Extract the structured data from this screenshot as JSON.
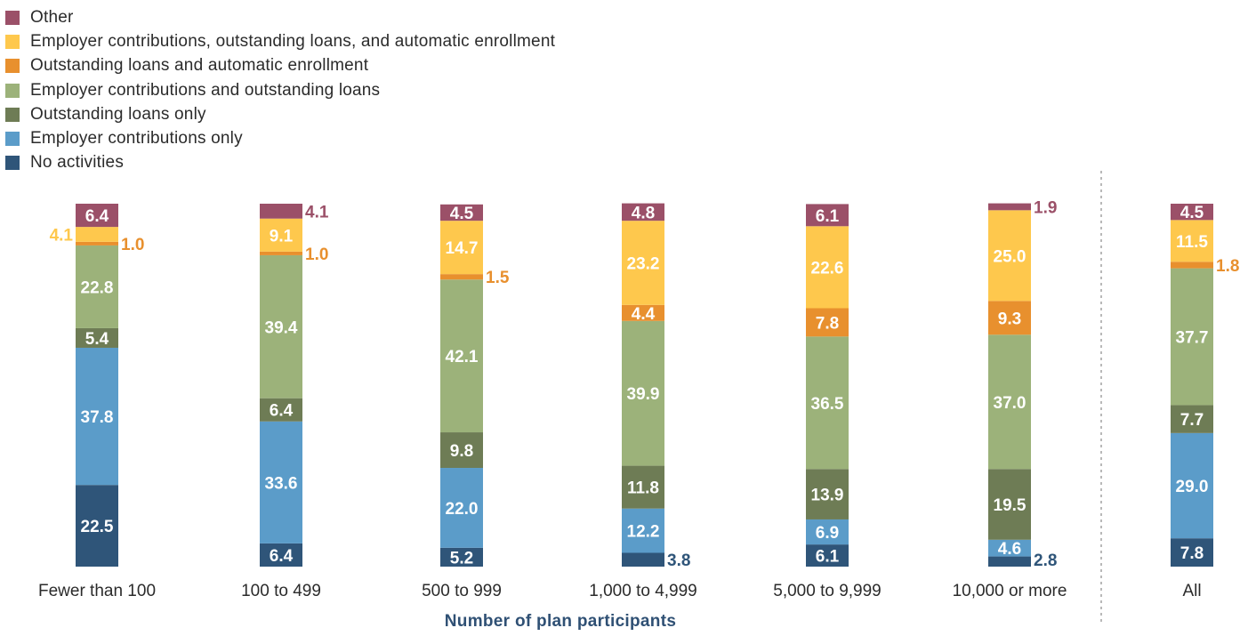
{
  "chart_data": {
    "type": "bar",
    "stacked": true,
    "xlabel": "Number of plan participants",
    "ylabel": "",
    "ylim": [
      0,
      100
    ],
    "categories": [
      "Fewer than 100",
      "100 to 499",
      "500 to 999",
      "1,000 to 4,999",
      "5,000 to 9,999",
      "10,000 or more",
      "All"
    ],
    "legend_position": "top-left",
    "separator_before_last_category": true,
    "series": [
      {
        "name": "No activities",
        "color": "#2f5579",
        "values": [
          22.5,
          6.4,
          5.2,
          3.8,
          6.1,
          2.8,
          7.8
        ]
      },
      {
        "name": "Employer contributions only",
        "color": "#5b9cc9",
        "values": [
          37.8,
          33.6,
          22.0,
          12.2,
          6.9,
          4.6,
          29.0
        ]
      },
      {
        "name": "Outstanding loans only",
        "color": "#6e7c55",
        "values": [
          5.4,
          6.4,
          9.8,
          11.8,
          13.9,
          19.5,
          7.7
        ]
      },
      {
        "name": "Employer contributions and outstanding loans",
        "color": "#9cb27a",
        "values": [
          22.8,
          39.4,
          42.1,
          39.9,
          36.5,
          37.0,
          37.7
        ]
      },
      {
        "name": "Outstanding loans and automatic enrollment",
        "color": "#e8902e",
        "values": [
          1.0,
          1.0,
          1.5,
          4.4,
          7.8,
          9.3,
          1.8
        ]
      },
      {
        "name": "Employer contributions, outstanding loans, and automatic enrollment",
        "color": "#fec84d",
        "values": [
          4.1,
          9.1,
          14.7,
          23.2,
          22.6,
          25.0,
          11.5
        ]
      },
      {
        "name": "Other",
        "color": "#9b5068",
        "values": [
          6.4,
          4.1,
          4.5,
          4.8,
          6.1,
          1.9,
          4.5
        ]
      }
    ]
  }
}
